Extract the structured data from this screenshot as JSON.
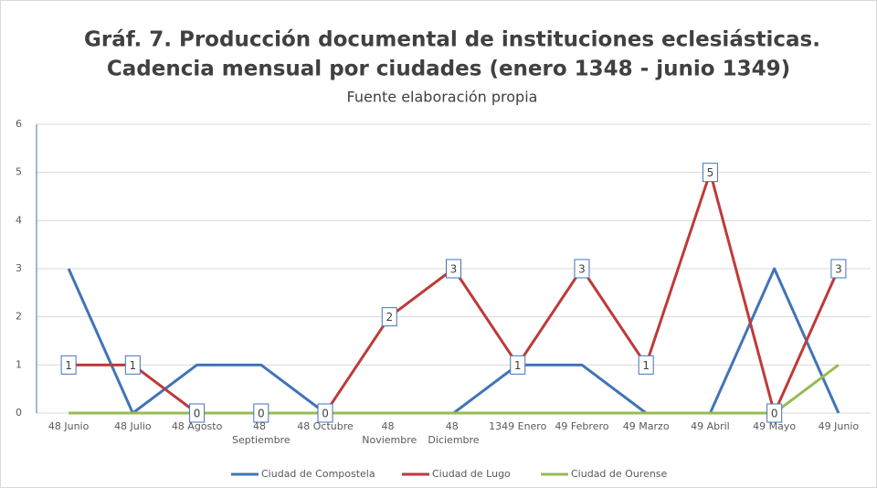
{
  "chart_data": {
    "type": "line",
    "title": [
      "Gráf. 7. Producción documental de instituciones eclesiásticas.",
      "Cadencia mensual por ciudades (enero 1348 - junio 1349)"
    ],
    "subtitle": "Fuente elaboración propia",
    "categories": [
      "48 Junio",
      "48 Julio",
      "48 Agosto",
      "48 Septiembre",
      "48 Octubre",
      "48 Noviembre",
      "48 Diciembre",
      "1349 Enero",
      "49 Febrero",
      "49 Marzo",
      "49 Abril",
      "49 Mayo",
      "49 Junio"
    ],
    "series": [
      {
        "name": "Ciudad de Compostela",
        "color": "#4174b8",
        "values": [
          3,
          0,
          1,
          1,
          0,
          0,
          0,
          1,
          1,
          0,
          0,
          3,
          0
        ]
      },
      {
        "name": "Ciudad de Lugo",
        "color": "#be3a3a",
        "values": [
          1,
          1,
          0,
          0,
          0,
          2,
          3,
          1,
          3,
          1,
          5,
          0,
          3
        ],
        "data_labels": true
      },
      {
        "name": "Ciudad de Ourense",
        "color": "#98bb55",
        "values": [
          0,
          0,
          0,
          0,
          0,
          0,
          0,
          0,
          0,
          0,
          0,
          0,
          1
        ]
      }
    ],
    "ylim": [
      0,
      6
    ],
    "yticks": [
      0,
      1,
      2,
      3,
      4,
      5,
      6
    ],
    "grid": true,
    "legend": "bottom"
  }
}
